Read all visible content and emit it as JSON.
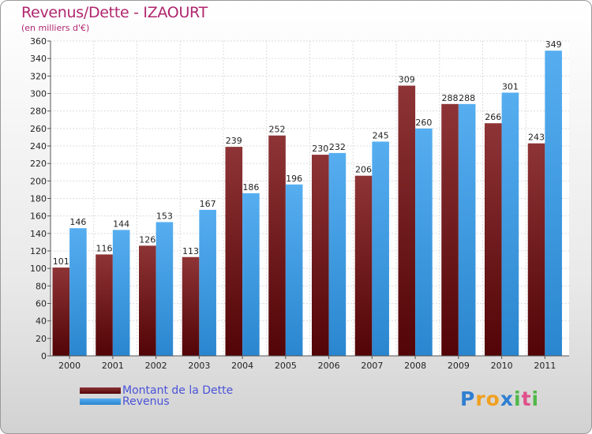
{
  "chart_data": {
    "type": "bar",
    "title": "Revenus/Dette - IZAOURT",
    "subtitle": "(en milliers d'€)",
    "xlabel": "",
    "ylabel": "",
    "ylim": [
      0,
      360
    ],
    "ytick_step": 20,
    "grid": true,
    "categories": [
      "2000",
      "2001",
      "2002",
      "2003",
      "2004",
      "2005",
      "2006",
      "2007",
      "2008",
      "2009",
      "2010",
      "2011"
    ],
    "series": [
      {
        "name": "Montant de la Dette",
        "color": "#7a1f22",
        "values": [
          101,
          116,
          126,
          113,
          239,
          252,
          230,
          206,
          309,
          288,
          266,
          243
        ]
      },
      {
        "name": "Revenus",
        "color": "#3d9be0",
        "values": [
          146,
          144,
          153,
          167,
          186,
          196,
          232,
          245,
          260,
          288,
          301,
          349
        ]
      }
    ],
    "legend": {
      "placement": "bottom-left"
    }
  },
  "watermark": {
    "letters": [
      "P",
      "r",
      "o",
      "x",
      "i",
      "t",
      "i"
    ],
    "colors": [
      "#2f7fd0",
      "#f0a020",
      "#f0a020",
      "#2f7fd0",
      "#50b848",
      "#e0508a",
      "#50b848"
    ]
  }
}
